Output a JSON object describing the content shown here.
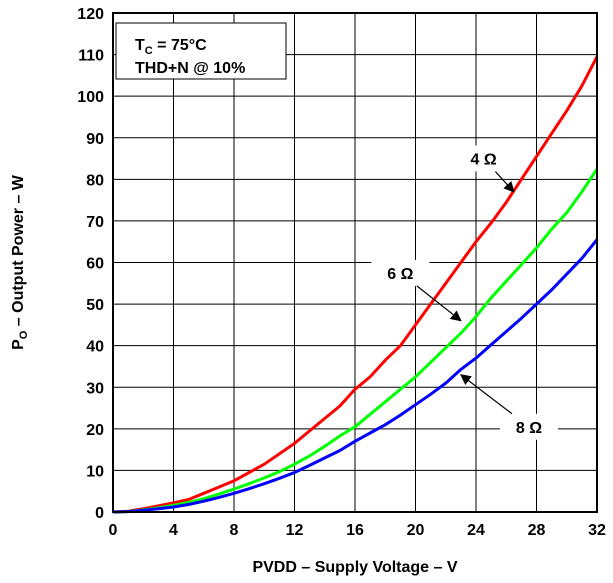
{
  "chart_data": {
    "type": "line",
    "xlabel": "PVDD – Supply Voltage – V",
    "ylabel_main": "P",
    "ylabel_sub": "O",
    "ylabel_rest": " – Output Power – W",
    "xlim": [
      0,
      32
    ],
    "ylim": [
      0,
      120
    ],
    "xticks": [
      "0",
      "4",
      "8",
      "12",
      "16",
      "20",
      "24",
      "28",
      "32"
    ],
    "yticks": [
      "0",
      "10",
      "20",
      "30",
      "40",
      "50",
      "60",
      "70",
      "80",
      "90",
      "100",
      "110",
      "120"
    ],
    "grid": true,
    "annotation_box": {
      "line1_main": "T",
      "line1_sub": "C",
      "line1_rest": " = 75°C",
      "line2": "THD+N @ 10%"
    },
    "series": [
      {
        "name": "4 Ω",
        "color": "#ff0000",
        "x": [
          0,
          1,
          2,
          3,
          4,
          5,
          6,
          7,
          8,
          9,
          10,
          11,
          12,
          13,
          14,
          15,
          16,
          17,
          18,
          19,
          20,
          21,
          22,
          23,
          24,
          25,
          26,
          27,
          28,
          29,
          30,
          31,
          32
        ],
        "y": [
          0,
          0.2,
          0.8,
          1.5,
          2.2,
          3.0,
          4.5,
          6.0,
          7.5,
          9.5,
          11.5,
          14.0,
          16.5,
          19.5,
          22.5,
          25.5,
          29.5,
          32.5,
          36.5,
          40.0,
          45.0,
          50.0,
          55.0,
          60.0,
          65.0,
          69.5,
          74.5,
          80.0,
          85.5,
          91.0,
          96.5,
          102.5,
          109.5
        ]
      },
      {
        "name": "6 Ω",
        "color": "#00ff00",
        "x": [
          0,
          1,
          2,
          3,
          4,
          5,
          6,
          7,
          8,
          9,
          10,
          11,
          12,
          13,
          14,
          15,
          16,
          17,
          18,
          19,
          20,
          21,
          22,
          23,
          24,
          25,
          26,
          27,
          28,
          29,
          30,
          31,
          32
        ],
        "y": [
          0,
          0.1,
          0.5,
          1.0,
          1.6,
          2.3,
          3.2,
          4.3,
          5.5,
          6.8,
          8.2,
          9.7,
          11.5,
          13.5,
          15.8,
          18.3,
          20.5,
          23.5,
          26.5,
          29.5,
          32.5,
          36.0,
          39.5,
          43.0,
          47.0,
          51.5,
          55.5,
          59.5,
          63.5,
          68.0,
          72.0,
          77.0,
          82.5
        ]
      },
      {
        "name": "8 Ω",
        "color": "#0000ff",
        "x": [
          0,
          1,
          2,
          3,
          4,
          5,
          6,
          7,
          8,
          9,
          10,
          11,
          12,
          13,
          14,
          15,
          16,
          17,
          18,
          19,
          20,
          21,
          22,
          23,
          24,
          25,
          26,
          27,
          28,
          29,
          30,
          31,
          32
        ],
        "y": [
          0,
          0.1,
          0.4,
          0.8,
          1.2,
          1.8,
          2.6,
          3.5,
          4.5,
          5.6,
          6.8,
          8.1,
          9.5,
          11.2,
          13.0,
          14.8,
          17.0,
          19.0,
          21.0,
          23.3,
          25.8,
          28.3,
          31.0,
          34.3,
          37.0,
          40.2,
          43.4,
          46.6,
          50.0,
          53.4,
          57.2,
          61.0,
          65.5
        ]
      }
    ],
    "curve_labels": [
      {
        "text": "4 Ω",
        "label_at": [
          24.5,
          85
        ],
        "arrow_to": [
          26.5,
          77
        ]
      },
      {
        "text": "6 Ω",
        "label_at": [
          19.0,
          57.5
        ],
        "arrow_to": [
          23.0,
          46
        ]
      },
      {
        "text": "8 Ω",
        "label_at": [
          27.5,
          20.5
        ],
        "arrow_to": [
          23.0,
          33
        ]
      }
    ]
  }
}
